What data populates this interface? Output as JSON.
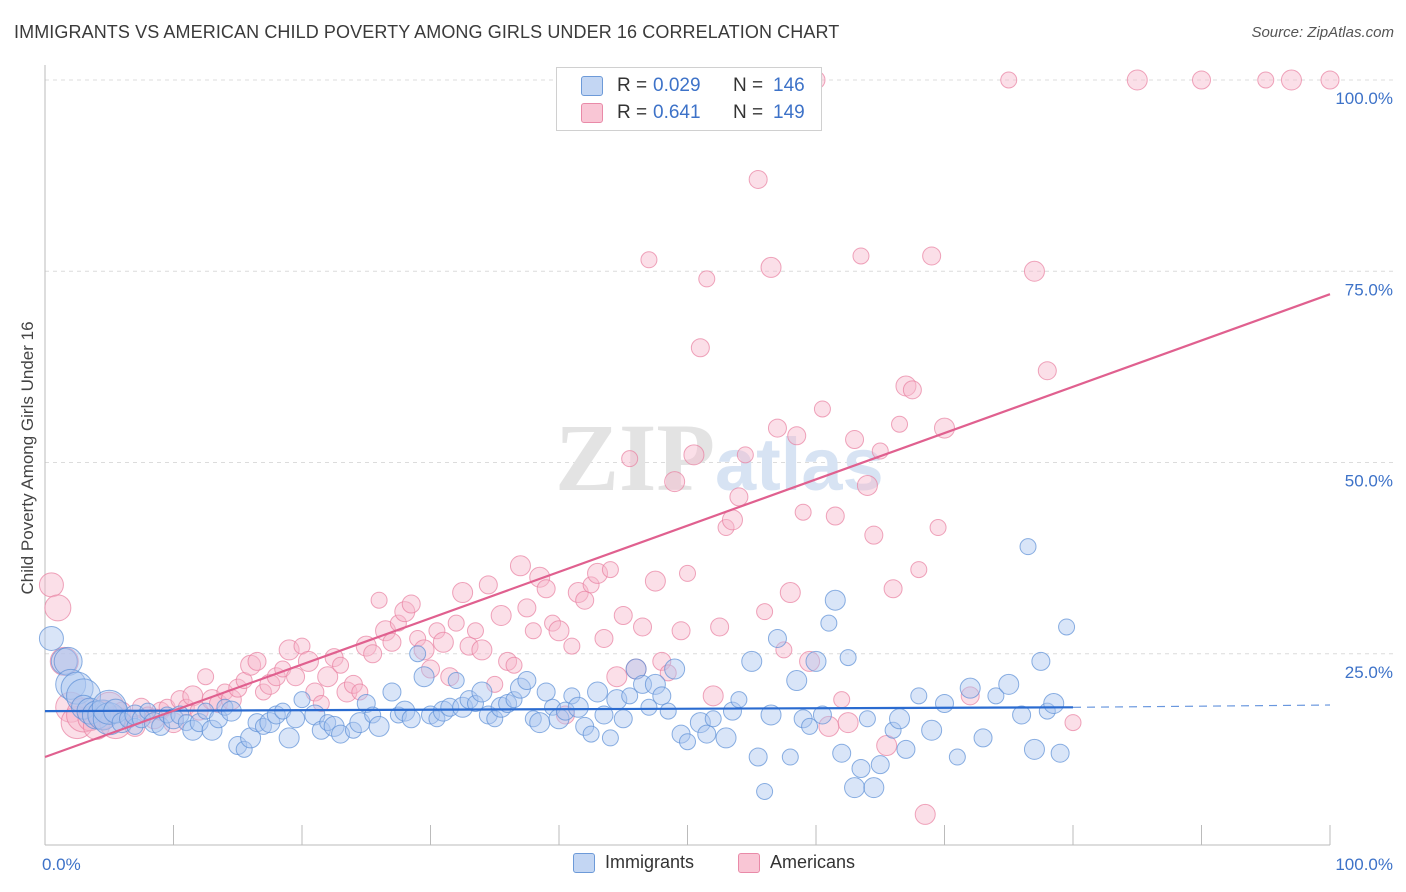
{
  "title": "IMMIGRANTS VS AMERICAN CHILD POVERTY AMONG GIRLS UNDER 16 CORRELATION CHART",
  "source": "Source: ZipAtlas.com",
  "watermark": {
    "zip": "ZIP",
    "atlas": "atlas"
  },
  "colors": {
    "immigrants_fill": "#aac6ef",
    "immigrants_stroke": "#5b8fd6",
    "immigrants_line": "#2a6bd0",
    "americans_fill": "#f7b8cb",
    "americans_stroke": "#e87fa0",
    "americans_line": "#e0608f",
    "tick_text": "#3d72c8",
    "grid": "#dcdcdc"
  },
  "legend": {
    "immigrants": {
      "r_label": "R =",
      "r_value": "0.029",
      "n_label": "N =",
      "n_value": "146"
    },
    "americans": {
      "r_label": "R =",
      "r_value": "0.641",
      "n_label": "N =",
      "n_value": "149"
    }
  },
  "bottom_legend": {
    "immigrants": "Immigrants",
    "americans": "Americans"
  },
  "chart_data": {
    "type": "scatter",
    "title": "IMMIGRANTS VS AMERICAN CHILD POVERTY AMONG GIRLS UNDER 16 CORRELATION CHART",
    "xlabel": "",
    "ylabel": "Child Poverty Among Girls Under 16",
    "xlim": [
      0,
      100
    ],
    "ylim": [
      0,
      100
    ],
    "x_tick_labels": [
      "0.0%",
      "100.0%"
    ],
    "y_ticks": [
      25,
      50,
      75,
      100
    ],
    "y_tick_labels": [
      "25.0%",
      "50.0%",
      "75.0%",
      "100.0%"
    ],
    "grid": true,
    "legend_position": "top-center",
    "series": [
      {
        "name": "Immigrants",
        "R": 0.029,
        "N": 146,
        "trend": {
          "x0": 0,
          "y0": 17.5,
          "x1": 80,
          "y1": 18.0,
          "dashed_to": 100,
          "dashed_y": 18.3
        },
        "points": [
          [
            0.5,
            27
          ],
          [
            1.5,
            24
          ],
          [
            1.8,
            24
          ],
          [
            2,
            21
          ],
          [
            2.5,
            20.5
          ],
          [
            3,
            19.5
          ],
          [
            3,
            18
          ],
          [
            3.5,
            17.5
          ],
          [
            4,
            17
          ],
          [
            4.5,
            17
          ],
          [
            5,
            16.5
          ],
          [
            5,
            18
          ],
          [
            5.5,
            17.5
          ],
          [
            6,
            16
          ],
          [
            6.5,
            16.5
          ],
          [
            7,
            15.5
          ],
          [
            7,
            17
          ],
          [
            7.5,
            16.5
          ],
          [
            8,
            17.5
          ],
          [
            8.5,
            16
          ],
          [
            9,
            15.5
          ],
          [
            9.5,
            17
          ],
          [
            10,
            16.5
          ],
          [
            10.5,
            17
          ],
          [
            11,
            16
          ],
          [
            11.5,
            15
          ],
          [
            12,
            16
          ],
          [
            12.5,
            17.5
          ],
          [
            13,
            15
          ],
          [
            13.5,
            16.5
          ],
          [
            14,
            18
          ],
          [
            14.5,
            17.5
          ],
          [
            15,
            13
          ],
          [
            15.5,
            12.5
          ],
          [
            16,
            14
          ],
          [
            16.5,
            16
          ],
          [
            17,
            15.5
          ],
          [
            17.5,
            16
          ],
          [
            18,
            17
          ],
          [
            18.5,
            17.5
          ],
          [
            19,
            14
          ],
          [
            19.5,
            16.5
          ],
          [
            20,
            19
          ],
          [
            21,
            17
          ],
          [
            21.5,
            15
          ],
          [
            22,
            16
          ],
          [
            22.5,
            15.5
          ],
          [
            23,
            14.5
          ],
          [
            24,
            15
          ],
          [
            24.5,
            16
          ],
          [
            25,
            18.5
          ],
          [
            25.5,
            17
          ],
          [
            26,
            15.5
          ],
          [
            27,
            20
          ],
          [
            27.5,
            17
          ],
          [
            28,
            17.5
          ],
          [
            28.5,
            16.5
          ],
          [
            29,
            25
          ],
          [
            29.5,
            22
          ],
          [
            30,
            17
          ],
          [
            30.5,
            16.5
          ],
          [
            31,
            17.5
          ],
          [
            31.5,
            18
          ],
          [
            32,
            21.5
          ],
          [
            32.5,
            18
          ],
          [
            33,
            19
          ],
          [
            33.5,
            18.5
          ],
          [
            34,
            20
          ],
          [
            34.5,
            17
          ],
          [
            35,
            16.5
          ],
          [
            35.5,
            18
          ],
          [
            36,
            18.5
          ],
          [
            36.5,
            19
          ],
          [
            37,
            20.5
          ],
          [
            37.5,
            21.5
          ],
          [
            38,
            16.5
          ],
          [
            38.5,
            16
          ],
          [
            39,
            20
          ],
          [
            39.5,
            18
          ],
          [
            40,
            16.5
          ],
          [
            40.5,
            17.5
          ],
          [
            41,
            19.5
          ],
          [
            41.5,
            18
          ],
          [
            42,
            15.5
          ],
          [
            42.5,
            14.5
          ],
          [
            43,
            20
          ],
          [
            43.5,
            17
          ],
          [
            44,
            14
          ],
          [
            44.5,
            19
          ],
          [
            45,
            16.5
          ],
          [
            45.5,
            19.5
          ],
          [
            46,
            23
          ],
          [
            46.5,
            21
          ],
          [
            47,
            18
          ],
          [
            47.5,
            21
          ],
          [
            48,
            19.5
          ],
          [
            48.5,
            17.5
          ],
          [
            49,
            23
          ],
          [
            49.5,
            14.5
          ],
          [
            50,
            13.5
          ],
          [
            51,
            16
          ],
          [
            51.5,
            14.5
          ],
          [
            52,
            16.5
          ],
          [
            53,
            14
          ],
          [
            53.5,
            17.5
          ],
          [
            54,
            19
          ],
          [
            55,
            24
          ],
          [
            55.5,
            11.5
          ],
          [
            56,
            7
          ],
          [
            56.5,
            17
          ],
          [
            57,
            27
          ],
          [
            58,
            11.5
          ],
          [
            58.5,
            21.5
          ],
          [
            59,
            16.5
          ],
          [
            59.5,
            15.5
          ],
          [
            60,
            24
          ],
          [
            60.5,
            17
          ],
          [
            61,
            29
          ],
          [
            61.5,
            32
          ],
          [
            62,
            12
          ],
          [
            62.5,
            24.5
          ],
          [
            63,
            7.5
          ],
          [
            63.5,
            10
          ],
          [
            64,
            16.5
          ],
          [
            64.5,
            7.5
          ],
          [
            65,
            10.5
          ],
          [
            66,
            15
          ],
          [
            66.5,
            16.5
          ],
          [
            67,
            12.5
          ],
          [
            68,
            19.5
          ],
          [
            69,
            15
          ],
          [
            70,
            18.5
          ],
          [
            71,
            11.5
          ],
          [
            72,
            20.5
          ],
          [
            73,
            14
          ],
          [
            74,
            19.5
          ],
          [
            75,
            21
          ],
          [
            76,
            17
          ],
          [
            76.5,
            39
          ],
          [
            77,
            12.5
          ],
          [
            77.5,
            24
          ],
          [
            78,
            17.5
          ],
          [
            78.5,
            18.5
          ],
          [
            79,
            12
          ],
          [
            79.5,
            28.5
          ]
        ]
      },
      {
        "name": "Americans",
        "R": 0.641,
        "N": 149,
        "trend": {
          "x0": 0,
          "y0": 11.5,
          "x1": 100,
          "y1": 72.0
        },
        "points": [
          [
            0.5,
            34
          ],
          [
            1,
            31
          ],
          [
            1.5,
            24
          ],
          [
            2,
            18
          ],
          [
            2.5,
            16
          ],
          [
            3,
            17
          ],
          [
            3.5,
            16.5
          ],
          [
            4,
            15.5
          ],
          [
            4.5,
            17
          ],
          [
            5,
            18
          ],
          [
            5.5,
            16
          ],
          [
            6,
            17.5
          ],
          [
            6.5,
            16.5
          ],
          [
            7,
            15.5
          ],
          [
            7.5,
            18
          ],
          [
            8,
            17
          ],
          [
            8.5,
            16.5
          ],
          [
            9,
            17.5
          ],
          [
            9.5,
            18
          ],
          [
            10,
            16
          ],
          [
            10.5,
            19
          ],
          [
            11,
            18
          ],
          [
            11.5,
            19.5
          ],
          [
            12,
            17.5
          ],
          [
            12.5,
            22
          ],
          [
            13,
            19
          ],
          [
            13.5,
            18.5
          ],
          [
            14,
            20
          ],
          [
            14.5,
            19
          ],
          [
            15,
            20.5
          ],
          [
            15.5,
            21.5
          ],
          [
            16,
            23.5
          ],
          [
            16.5,
            24
          ],
          [
            17,
            20
          ],
          [
            17.5,
            21
          ],
          [
            18,
            22
          ],
          [
            18.5,
            23
          ],
          [
            19,
            25.5
          ],
          [
            19.5,
            22
          ],
          [
            20,
            26
          ],
          [
            20.5,
            24
          ],
          [
            21,
            20
          ],
          [
            21.5,
            18.5
          ],
          [
            22,
            22
          ],
          [
            22.5,
            24.5
          ],
          [
            23,
            23.5
          ],
          [
            23.5,
            20
          ],
          [
            24,
            21
          ],
          [
            24.5,
            20
          ],
          [
            25,
            26
          ],
          [
            25.5,
            25
          ],
          [
            26,
            32
          ],
          [
            26.5,
            28
          ],
          [
            27,
            26.5
          ],
          [
            27.5,
            29
          ],
          [
            28,
            30.5
          ],
          [
            28.5,
            31.5
          ],
          [
            29,
            27
          ],
          [
            29.5,
            25.5
          ],
          [
            30,
            23
          ],
          [
            30.5,
            28
          ],
          [
            31,
            26.5
          ],
          [
            31.5,
            22
          ],
          [
            32,
            29
          ],
          [
            32.5,
            33
          ],
          [
            33,
            26
          ],
          [
            33.5,
            28
          ],
          [
            34,
            25.5
          ],
          [
            34.5,
            34
          ],
          [
            35,
            21
          ],
          [
            35.5,
            30
          ],
          [
            36,
            24
          ],
          [
            36.5,
            23.5
          ],
          [
            37,
            36.5
          ],
          [
            37.5,
            31
          ],
          [
            38,
            28
          ],
          [
            38.5,
            35
          ],
          [
            39,
            33.5
          ],
          [
            39.5,
            29
          ],
          [
            40,
            28
          ],
          [
            40.5,
            17
          ],
          [
            41,
            26
          ],
          [
            41.5,
            33
          ],
          [
            42,
            32
          ],
          [
            42.5,
            34
          ],
          [
            43,
            35.5
          ],
          [
            43.5,
            27
          ],
          [
            44,
            36
          ],
          [
            44.5,
            22
          ],
          [
            45,
            30
          ],
          [
            45.5,
            50.5
          ],
          [
            46,
            23
          ],
          [
            46.5,
            28.5
          ],
          [
            47,
            76.5
          ],
          [
            47.5,
            34.5
          ],
          [
            48,
            24
          ],
          [
            48.5,
            22.5
          ],
          [
            49,
            47.5
          ],
          [
            49.5,
            28
          ],
          [
            50,
            35.5
          ],
          [
            50.5,
            51
          ],
          [
            51,
            65
          ],
          [
            51.5,
            74
          ],
          [
            52,
            19.5
          ],
          [
            52.5,
            28.5
          ],
          [
            53,
            41.5
          ],
          [
            53.5,
            42.5
          ],
          [
            54,
            45.5
          ],
          [
            54.5,
            51
          ],
          [
            55,
            100
          ],
          [
            55.5,
            87
          ],
          [
            56,
            30.5
          ],
          [
            56.5,
            75.5
          ],
          [
            57,
            54.5
          ],
          [
            57.5,
            25.5
          ],
          [
            58,
            33
          ],
          [
            58.5,
            53.5
          ],
          [
            59,
            43.5
          ],
          [
            59.5,
            24
          ],
          [
            60,
            100
          ],
          [
            60.5,
            57
          ],
          [
            61,
            15.5
          ],
          [
            61.5,
            43
          ],
          [
            62,
            19
          ],
          [
            62.5,
            16
          ],
          [
            63,
            53
          ],
          [
            63.5,
            77
          ],
          [
            64,
            47
          ],
          [
            64.5,
            40.5
          ],
          [
            65,
            51.5
          ],
          [
            65.5,
            13
          ],
          [
            66,
            33.5
          ],
          [
            66.5,
            55
          ],
          [
            67,
            60
          ],
          [
            67.5,
            59.5
          ],
          [
            68,
            36
          ],
          [
            68.5,
            4
          ],
          [
            69,
            77
          ],
          [
            69.5,
            41.5
          ],
          [
            70,
            54.5
          ],
          [
            72,
            19.5
          ],
          [
            75,
            100
          ],
          [
            77,
            75
          ],
          [
            78,
            62
          ],
          [
            80,
            16
          ],
          [
            85,
            100
          ],
          [
            90,
            100
          ],
          [
            95,
            100
          ],
          [
            97,
            100
          ],
          [
            100,
            100
          ]
        ]
      }
    ]
  }
}
